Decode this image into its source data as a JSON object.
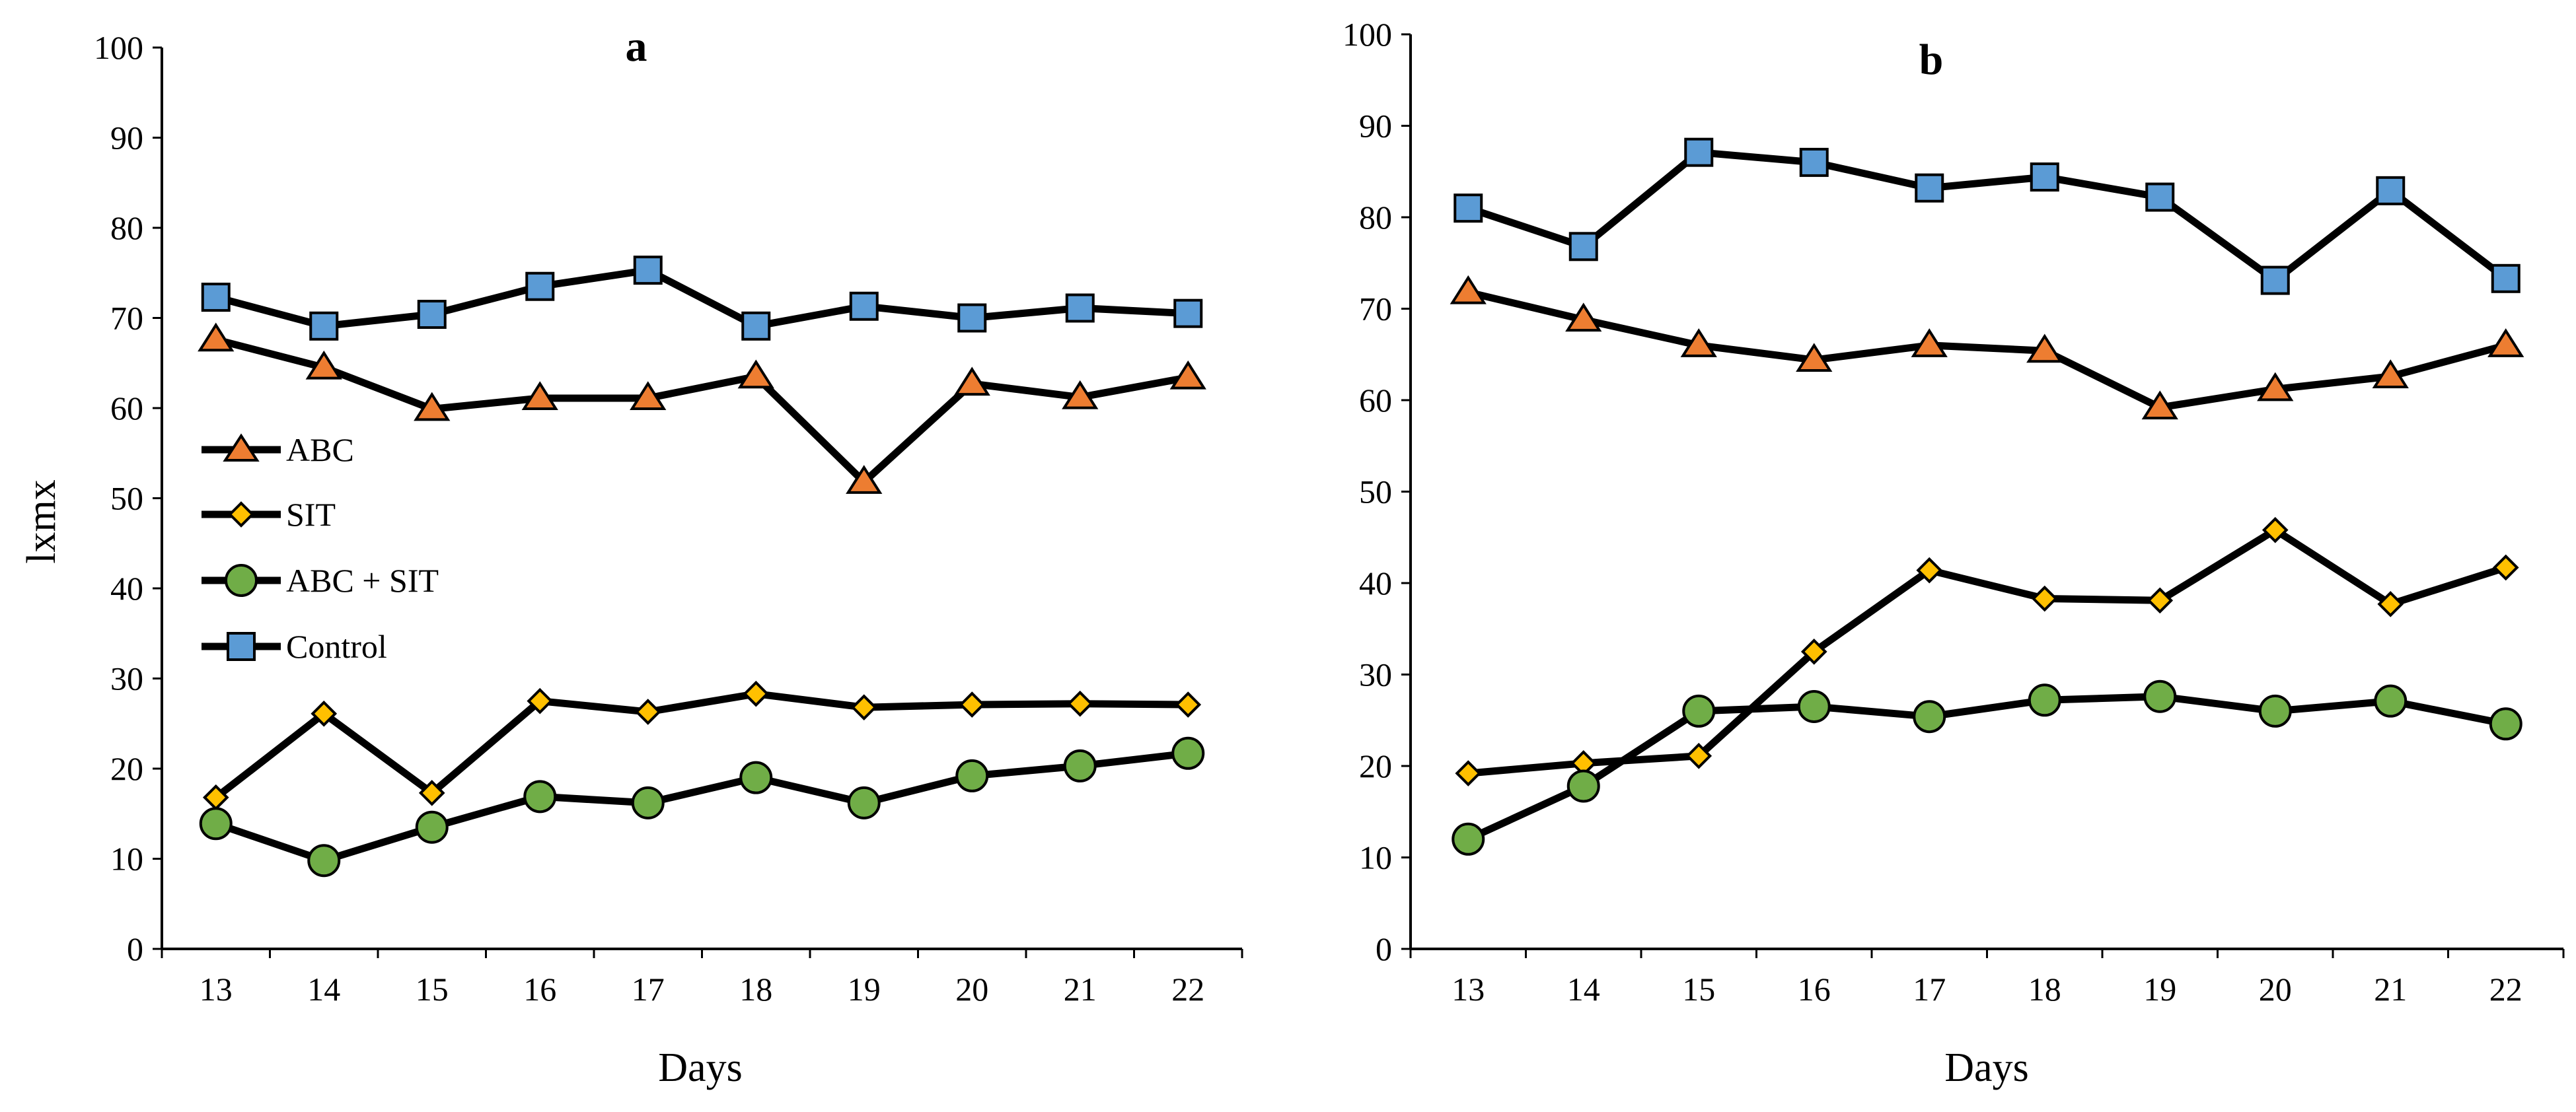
{
  "colors": {
    "ABC": "#ED7D31",
    "SIT": "#FFC000",
    "ABC + SIT": "#70AD47",
    "Control": "#5B9BD5"
  },
  "markers": {
    "ABC": "triangle",
    "SIT": "diamond",
    "ABC + SIT": "circle",
    "Control": "square"
  },
  "chart_data": [
    {
      "type": "line",
      "title": "a",
      "xlabel": "Days",
      "ylabel": "lxmx",
      "ylim": [
        0,
        100
      ],
      "yticks": [
        "0",
        "10",
        "20",
        "30",
        "40",
        "50",
        "60",
        "70",
        "80",
        "90",
        "100"
      ],
      "categories": [
        "13",
        "14",
        "15",
        "16",
        "17",
        "18",
        "19",
        "20",
        "21",
        "22"
      ],
      "legend": {
        "placement": "center-left",
        "entries": [
          "ABC",
          "SIT",
          "ABC + SIT",
          "Control"
        ]
      },
      "series": [
        {
          "name": "ABC",
          "values": [
            67.6,
            64.5,
            59.9,
            61.1,
            61.1,
            63.5,
            51.8,
            62.7,
            61.2,
            63.4
          ]
        },
        {
          "name": "SIT",
          "values": [
            16.8,
            26.1,
            17.3,
            27.5,
            26.3,
            28.3,
            26.8,
            27.1,
            27.2,
            27.1
          ]
        },
        {
          "name": "ABC + SIT",
          "values": [
            13.9,
            9.8,
            13.5,
            16.9,
            16.2,
            19.0,
            16.2,
            19.2,
            20.3,
            21.7
          ]
        },
        {
          "name": "Control",
          "values": [
            72.3,
            69.1,
            70.4,
            73.5,
            75.3,
            69.1,
            71.3,
            70.0,
            71.1,
            70.5
          ]
        }
      ]
    },
    {
      "type": "line",
      "title": "b",
      "xlabel": "Days",
      "ylabel": "",
      "ylim": [
        0,
        100
      ],
      "yticks": [
        "0",
        "10",
        "20",
        "30",
        "40",
        "50",
        "60",
        "70",
        "80",
        "90",
        "100"
      ],
      "categories": [
        "13",
        "14",
        "15",
        "16",
        "17",
        "18",
        "19",
        "20",
        "21",
        "22"
      ],
      "series": [
        {
          "name": "ABC",
          "values": [
            71.8,
            68.8,
            66.0,
            64.4,
            66.0,
            65.4,
            59.2,
            61.2,
            62.6,
            66.0
          ]
        },
        {
          "name": "SIT",
          "values": [
            19.2,
            20.3,
            21.1,
            32.5,
            41.4,
            38.3,
            38.1,
            45.8,
            37.7,
            41.7
          ]
        },
        {
          "name": "ABC + SIT",
          "values": [
            12.0,
            17.8,
            26.0,
            26.5,
            25.4,
            27.2,
            27.6,
            26.0,
            27.1,
            24.6
          ]
        },
        {
          "name": "Control",
          "values": [
            81.0,
            76.8,
            87.1,
            86.0,
            83.2,
            84.4,
            82.2,
            73.1,
            82.9,
            73.3
          ]
        }
      ]
    }
  ]
}
